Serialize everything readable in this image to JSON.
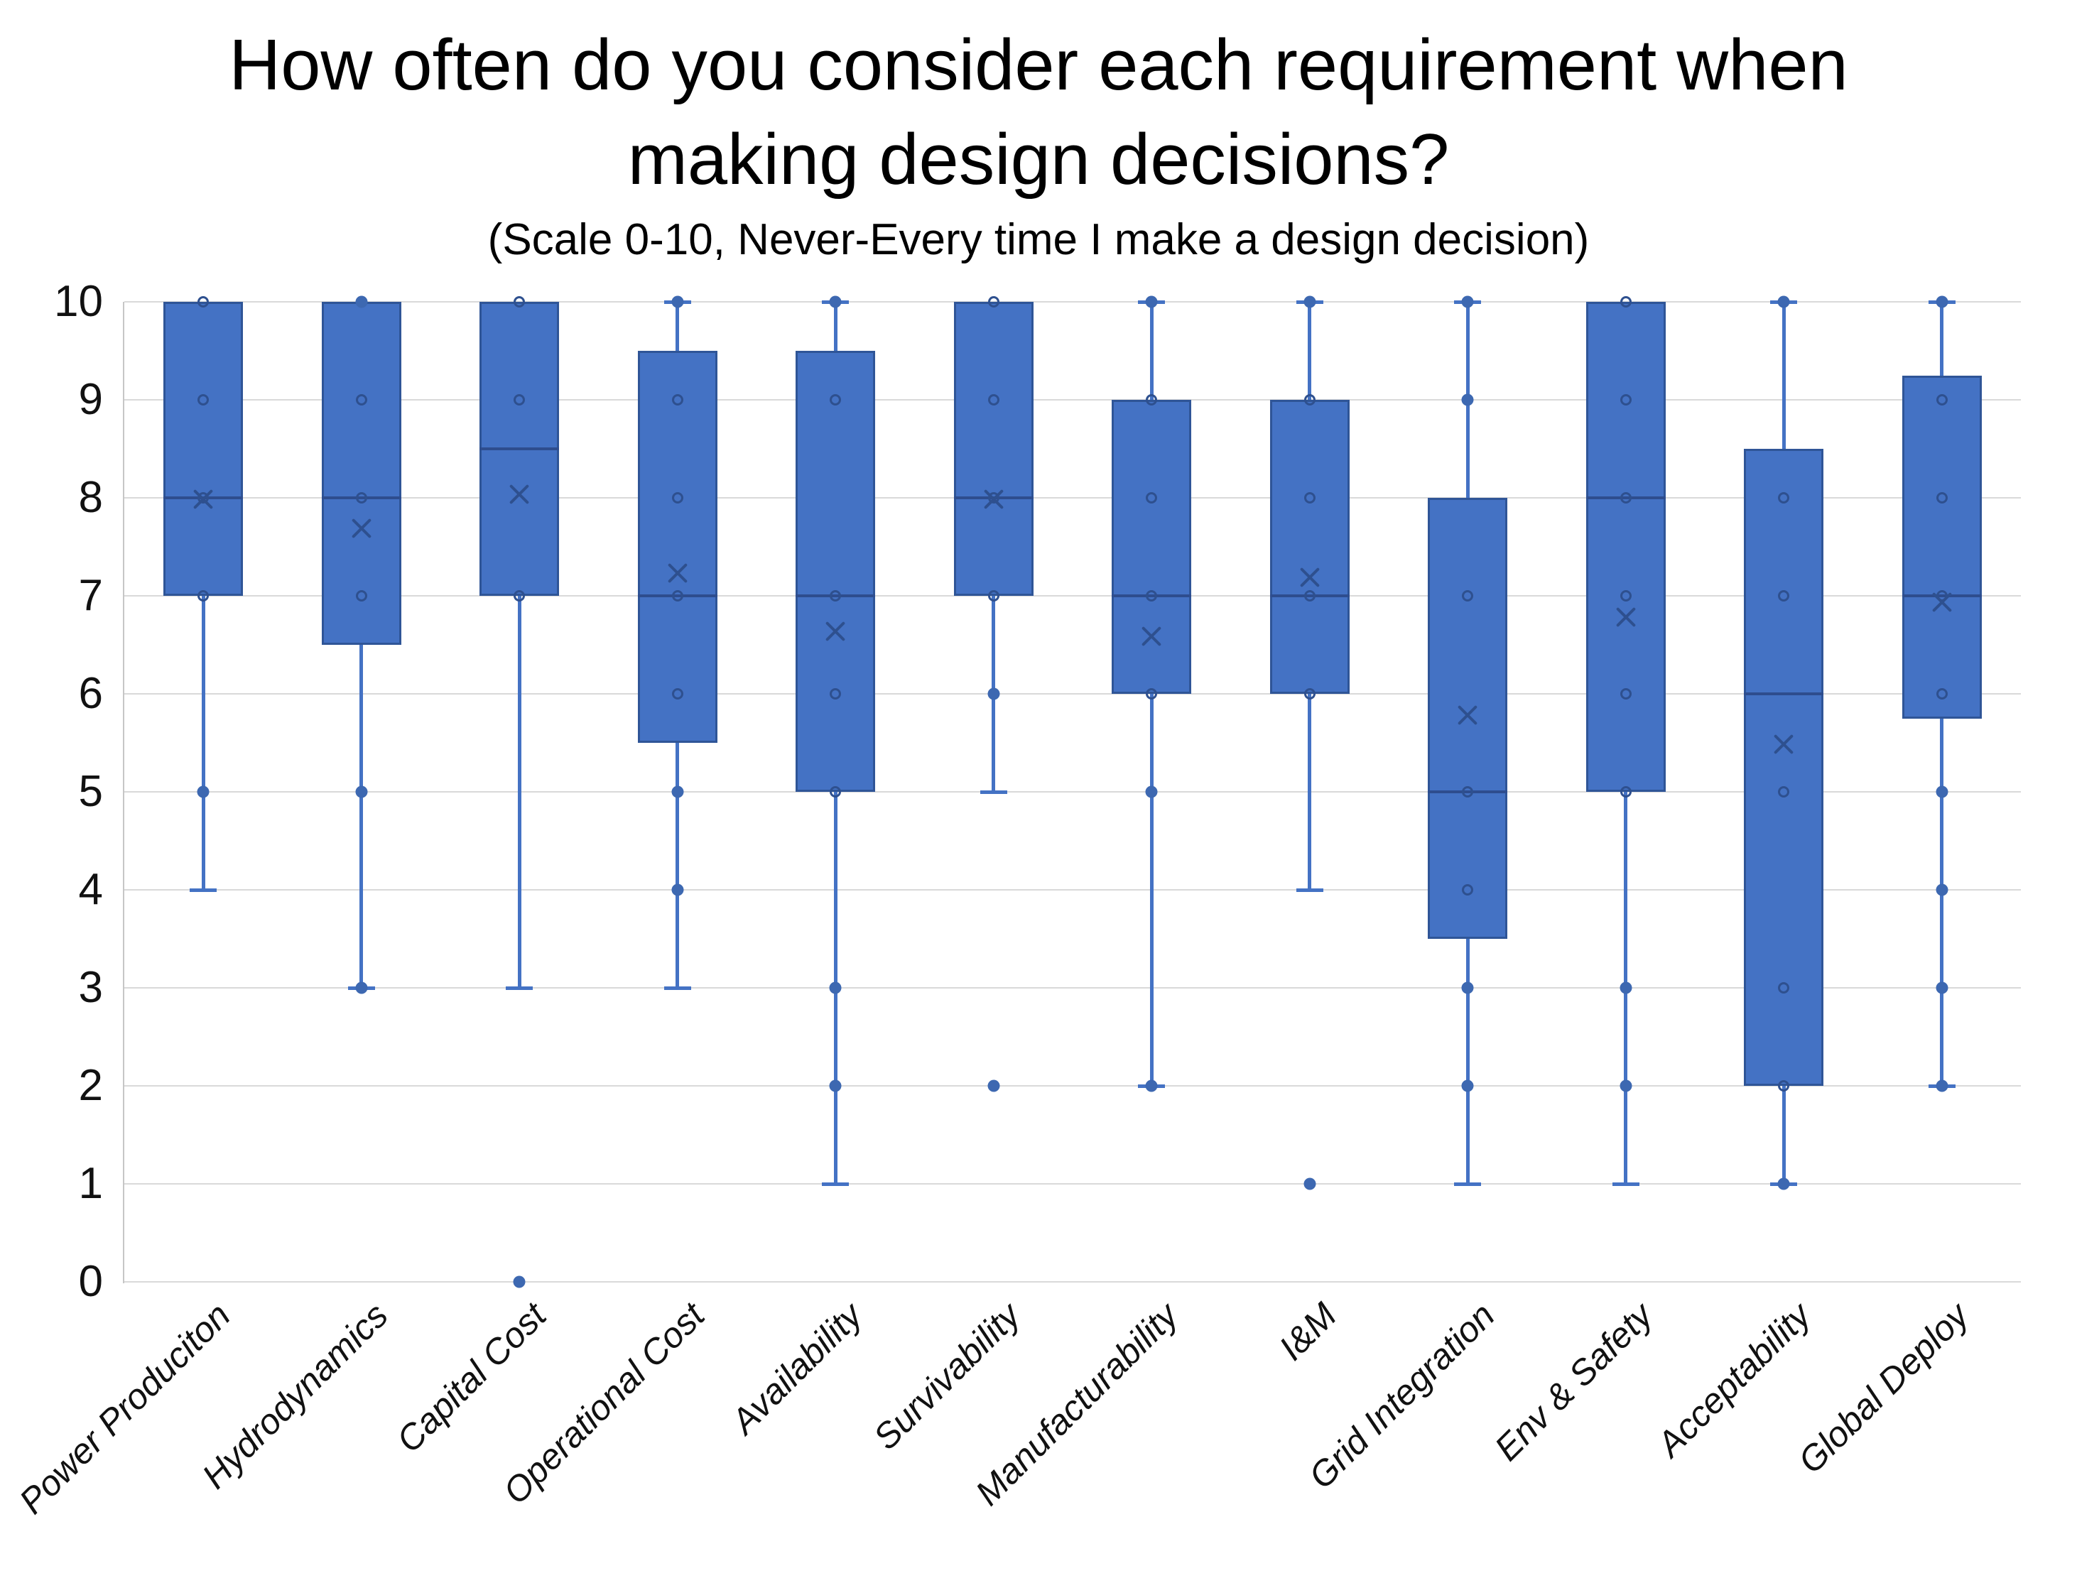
{
  "header": {
    "line1": "How often do you consider each requirement when",
    "line2": "making design decisions?",
    "subtitle": "(Scale 0-10, Never-Every time I make a design decision)"
  },
  "colors": {
    "box_fill": "#4472c4",
    "box_border": "#2f5597",
    "median_line": "#2e4d8e",
    "marker_outline": "#2e508f",
    "whisker": "#4472c4",
    "gridline": "#d9d9d9",
    "axis_line": "#c6c6c6",
    "text": "#000000"
  },
  "chart_data": {
    "type": "boxplot",
    "title": "How often do you consider each requirement when making design decisions?",
    "subtitle": "(Scale 0-10, Never-Every time I make a design decision)",
    "ylabel": "",
    "xlabel": "",
    "ylim": [
      0,
      10
    ],
    "yticks": [
      0,
      1,
      2,
      3,
      4,
      5,
      6,
      7,
      8,
      9,
      10
    ],
    "grid": true,
    "legend": false,
    "categories": [
      "Power Produciton",
      "Hydrodynamics",
      "Capital Cost",
      "Operational Cost",
      "Availability",
      "Survivability",
      "Manufacturability",
      "I&M",
      "Grid Integration",
      "Env & Safety",
      "Acceptability",
      "Global Deploy"
    ],
    "series": [
      {
        "name": "Power Produciton",
        "q1": 7,
        "median": 8,
        "q3": 10,
        "mean": 8.0,
        "whisker_low": 4,
        "whisker_high": 10,
        "open_circles": [
          10,
          9,
          8,
          7
        ],
        "filled_dots": [
          5
        ]
      },
      {
        "name": "Hydrodynamics",
        "q1": 6.5,
        "median": 8,
        "q3": 10,
        "mean": 7.7,
        "whisker_low": 3,
        "whisker_high": 10,
        "open_circles": [
          9,
          8,
          7
        ],
        "filled_dots": [
          10,
          5,
          3
        ]
      },
      {
        "name": "Capital Cost",
        "q1": 7,
        "median": 8.5,
        "q3": 10,
        "mean": 8.05,
        "whisker_low": 3,
        "whisker_high": 10,
        "open_circles": [
          10,
          9,
          7
        ],
        "filled_dots": [
          0
        ]
      },
      {
        "name": "Operational Cost",
        "q1": 5.5,
        "median": 7,
        "q3": 9.5,
        "mean": 7.25,
        "whisker_low": 3,
        "whisker_high": 10,
        "open_circles": [
          9,
          8,
          7,
          6
        ],
        "filled_dots": [
          10,
          5,
          4
        ]
      },
      {
        "name": "Availability",
        "q1": 5,
        "median": 7,
        "q3": 9.5,
        "mean": 6.65,
        "whisker_low": 1,
        "whisker_high": 10,
        "open_circles": [
          9,
          7,
          6,
          5
        ],
        "filled_dots": [
          10,
          3,
          2
        ]
      },
      {
        "name": "Survivability",
        "q1": 7,
        "median": 8,
        "q3": 10,
        "mean": 8.0,
        "whisker_low": 5,
        "whisker_high": 10,
        "open_circles": [
          10,
          9,
          8,
          7
        ],
        "filled_dots": [
          6,
          2
        ]
      },
      {
        "name": "Manufacturability",
        "q1": 6,
        "median": 7,
        "q3": 9,
        "mean": 6.6,
        "whisker_low": 2,
        "whisker_high": 10,
        "open_circles": [
          9,
          8,
          7,
          6
        ],
        "filled_dots": [
          10,
          5,
          2
        ]
      },
      {
        "name": "I&M",
        "q1": 6,
        "median": 7,
        "q3": 9,
        "mean": 7.2,
        "whisker_low": 4,
        "whisker_high": 10,
        "open_circles": [
          9,
          8,
          7,
          6
        ],
        "filled_dots": [
          10,
          1
        ]
      },
      {
        "name": "Grid Integration",
        "q1": 3.5,
        "median": 5,
        "q3": 8,
        "mean": 5.8,
        "whisker_low": 1,
        "whisker_high": 10,
        "open_circles": [
          7,
          5,
          4
        ],
        "filled_dots": [
          10,
          9,
          3,
          2
        ]
      },
      {
        "name": "Env & Safety",
        "q1": 5,
        "median": 8,
        "q3": 10,
        "mean": 6.8,
        "whisker_low": 1,
        "whisker_high": 10,
        "open_circles": [
          10,
          9,
          8,
          7,
          6,
          5
        ],
        "filled_dots": [
          3,
          2
        ]
      },
      {
        "name": "Acceptability",
        "q1": 2,
        "median": 6,
        "q3": 8.5,
        "mean": 5.5,
        "whisker_low": 1,
        "whisker_high": 10,
        "open_circles": [
          8,
          7,
          5,
          3,
          2
        ],
        "filled_dots": [
          10,
          1
        ]
      },
      {
        "name": "Global Deploy",
        "q1": 5.75,
        "median": 7,
        "q3": 9.25,
        "mean": 6.95,
        "whisker_low": 2,
        "whisker_high": 10,
        "open_circles": [
          9,
          8,
          7,
          6
        ],
        "filled_dots": [
          10,
          5,
          4,
          3,
          2
        ]
      }
    ]
  }
}
